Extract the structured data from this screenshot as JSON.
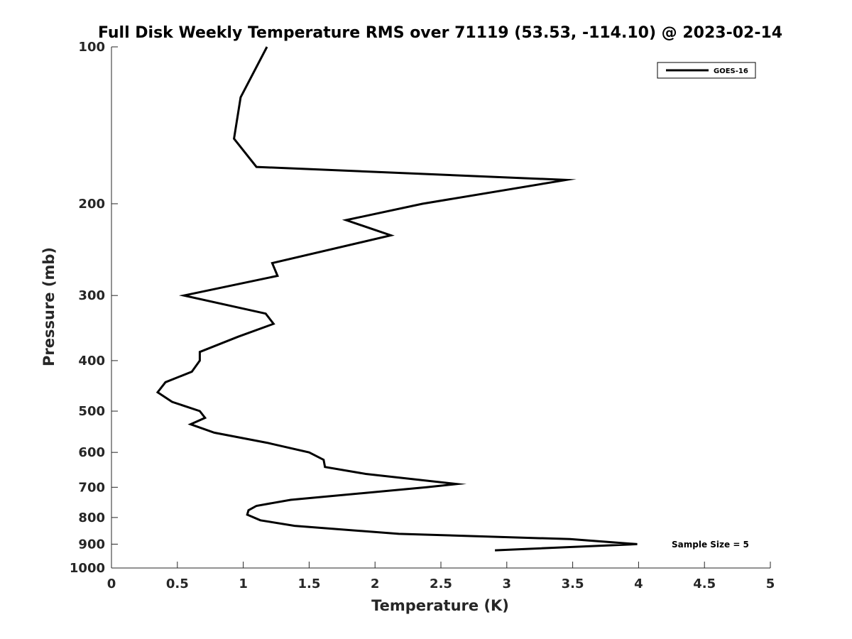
{
  "chart_data": {
    "type": "line",
    "title": "Full Disk Weekly Temperature RMS over 71119 (53.53, -114.10) @ 2023-02-14",
    "xlabel": "Temperature (K)",
    "ylabel": "Pressure (mb)",
    "xlim": [
      0,
      5
    ],
    "ylim": [
      100,
      1000
    ],
    "yscale": "log",
    "y_reversed": true,
    "xticks": [
      0,
      0.5,
      1,
      1.5,
      2,
      2.5,
      3,
      3.5,
      4,
      4.5,
      5
    ],
    "xtick_labels": [
      "0",
      "0.5",
      "1",
      "1.5",
      "2",
      "2.5",
      "3",
      "3.5",
      "4",
      "4.5",
      "5"
    ],
    "yticks": [
      100,
      200,
      300,
      400,
      500,
      600,
      700,
      800,
      900,
      1000
    ],
    "ytick_labels": [
      "100",
      "200",
      "300",
      "400",
      "500",
      "600",
      "700",
      "800",
      "900",
      "1000"
    ],
    "grid": false,
    "legend_position": "top-right",
    "series": [
      {
        "name": "GOES-16",
        "color": "#000000",
        "x": [
          1.18,
          0.98,
          0.93,
          1.1,
          3.45,
          2.36,
          1.78,
          2.12,
          1.22,
          1.26,
          0.55,
          1.17,
          1.23,
          0.96,
          0.67,
          0.67,
          0.61,
          0.41,
          0.35,
          0.46,
          0.67,
          0.71,
          0.6,
          0.78,
          1.18,
          1.5,
          1.61,
          1.62,
          1.93,
          2.62,
          2.39,
          1.36,
          1.1,
          1.04,
          1.03,
          1.13,
          1.39,
          2.18,
          3.48,
          3.99,
          2.91
        ],
        "y": [
          100,
          125,
          150,
          170,
          180,
          200,
          215,
          230,
          260,
          275,
          300,
          325,
          340,
          360,
          385,
          400,
          420,
          440,
          460,
          480,
          500,
          515,
          530,
          550,
          575,
          600,
          620,
          640,
          660,
          690,
          700,
          740,
          760,
          775,
          790,
          810,
          830,
          860,
          880,
          900,
          925
        ]
      }
    ],
    "annotations": [
      {
        "text": "Sample Size = 5"
      }
    ]
  }
}
